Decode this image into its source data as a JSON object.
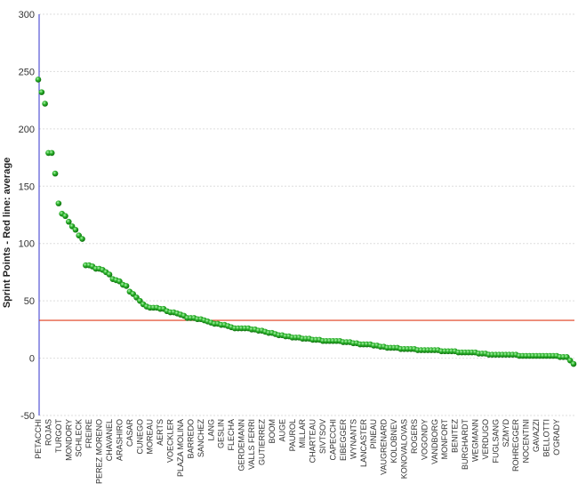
{
  "chart_data": {
    "type": "scatter",
    "title": "",
    "xlabel": "",
    "ylabel": "Sprint Points - Red line: average",
    "ylim": [
      -50,
      300
    ],
    "yticks": [
      -50,
      0,
      50,
      100,
      150,
      200,
      250,
      300
    ],
    "average": 33,
    "grid": true,
    "colors": {
      "point": "#2db52d",
      "average_line": "#e03c1c",
      "axis": "#3333cc",
      "grid": "#dddddd"
    },
    "labeled_ticks": [
      {
        "index": 0,
        "label": "PETACCHI"
      },
      {
        "index": 3,
        "label": "ROJAS"
      },
      {
        "index": 6,
        "label": "TURGOT"
      },
      {
        "index": 9,
        "label": "MONDORY"
      },
      {
        "index": 12,
        "label": "SCHLECK"
      },
      {
        "index": 15,
        "label": "FREIRE"
      },
      {
        "index": 18,
        "label": "PEREZ MORENO"
      },
      {
        "index": 21,
        "label": "CHAVANEL"
      },
      {
        "index": 24,
        "label": "ARASHIRO"
      },
      {
        "index": 27,
        "label": "CASAR"
      },
      {
        "index": 30,
        "label": "CUNEGO"
      },
      {
        "index": 33,
        "label": "MOREAU"
      },
      {
        "index": 36,
        "label": "AERTS"
      },
      {
        "index": 39,
        "label": "VOECKLER"
      },
      {
        "index": 42,
        "label": "PLAZA MOLINA"
      },
      {
        "index": 45,
        "label": "BARREDO"
      },
      {
        "index": 48,
        "label": "SANCHEZ"
      },
      {
        "index": 51,
        "label": "LANG"
      },
      {
        "index": 54,
        "label": "GESLIN"
      },
      {
        "index": 57,
        "label": "FLECHA"
      },
      {
        "index": 60,
        "label": "GERDEMANN"
      },
      {
        "index": 63,
        "label": "VALLS FERRI"
      },
      {
        "index": 66,
        "label": "GUTIERREZ"
      },
      {
        "index": 69,
        "label": "BOOM"
      },
      {
        "index": 72,
        "label": "AUGE"
      },
      {
        "index": 75,
        "label": "PAUROL"
      },
      {
        "index": 78,
        "label": "MILLAR"
      },
      {
        "index": 81,
        "label": "CHARTEAU"
      },
      {
        "index": 84,
        "label": "SIVTSOV"
      },
      {
        "index": 87,
        "label": "CAPECCHI"
      },
      {
        "index": 90,
        "label": "EIBEGGER"
      },
      {
        "index": 93,
        "label": "WYNANTS"
      },
      {
        "index": 96,
        "label": "LANCASTER"
      },
      {
        "index": 99,
        "label": "PINEAU"
      },
      {
        "index": 102,
        "label": "VAUGRENARD"
      },
      {
        "index": 105,
        "label": "KOLOBNEV"
      },
      {
        "index": 108,
        "label": "KONOVALOVAS"
      },
      {
        "index": 111,
        "label": "ROGERS"
      },
      {
        "index": 114,
        "label": "VOGONDY"
      },
      {
        "index": 117,
        "label": "VANDBORG"
      },
      {
        "index": 120,
        "label": "MONFORT"
      },
      {
        "index": 123,
        "label": "BENITEZ"
      },
      {
        "index": 126,
        "label": "BURGHARDT"
      },
      {
        "index": 129,
        "label": "WEGMANN"
      },
      {
        "index": 132,
        "label": "VERDUGO"
      },
      {
        "index": 135,
        "label": "FUGLSANG"
      },
      {
        "index": 138,
        "label": "SZMYD"
      },
      {
        "index": 141,
        "label": "ROHREGGER"
      },
      {
        "index": 144,
        "label": "NOCENTINI"
      },
      {
        "index": 147,
        "label": "GAVAZZI"
      },
      {
        "index": 150,
        "label": "BELLOTTI"
      },
      {
        "index": 153,
        "label": "O'GRADY"
      }
    ],
    "values": [
      243,
      232,
      222,
      179,
      179,
      161,
      135,
      126,
      124,
      119,
      115,
      112,
      107,
      104,
      81,
      81,
      80,
      78,
      78,
      77,
      75,
      73,
      69,
      68,
      67,
      64,
      63,
      58,
      56,
      53,
      50,
      47,
      45,
      44,
      44,
      44,
      43,
      43,
      41,
      40,
      40,
      39,
      38,
      37,
      35,
      35,
      35,
      34,
      34,
      33,
      32,
      31,
      30,
      30,
      29,
      29,
      28,
      27,
      26,
      26,
      26,
      26,
      26,
      25,
      25,
      24,
      24,
      23,
      22,
      22,
      21,
      20,
      20,
      19,
      19,
      18,
      18,
      18,
      17,
      17,
      17,
      16,
      16,
      16,
      15,
      15,
      15,
      15,
      15,
      15,
      14,
      14,
      14,
      13,
      13,
      12,
      12,
      12,
      12,
      11,
      11,
      10,
      10,
      9,
      9,
      9,
      9,
      8,
      8,
      8,
      8,
      8,
      7,
      7,
      7,
      7,
      7,
      7,
      7,
      6,
      6,
      6,
      6,
      6,
      5,
      5,
      5,
      5,
      5,
      5,
      4,
      4,
      4,
      3,
      3,
      3,
      3,
      3,
      3,
      3,
      3,
      3,
      2,
      2,
      2,
      2,
      2,
      2,
      2,
      2,
      2,
      2,
      2,
      2,
      1,
      1,
      1,
      -2,
      -5
    ]
  }
}
